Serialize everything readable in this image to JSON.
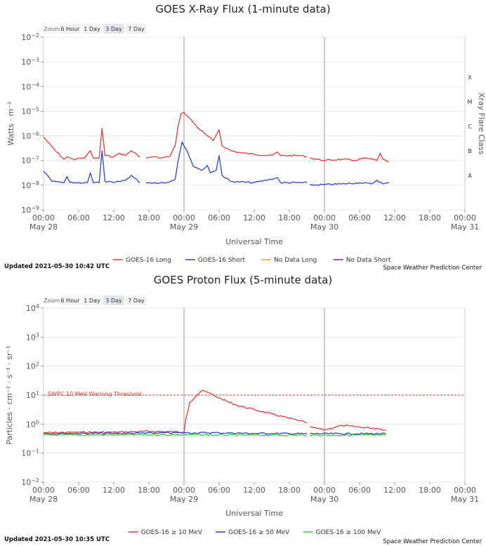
{
  "xray": {
    "zoom_label": "Zoom",
    "zoom": [
      "6 Hour",
      "1 Day",
      "3 Day",
      "7 Day"
    ],
    "zoom_selected": 2,
    "updated": "Updated 2021-05-30 10:42 UTC",
    "credit": "Space Weather Prediction Center",
    "flare_title": "Xray Flare Class",
    "flare_classes": [
      "X",
      "M",
      "C",
      "B",
      "A"
    ]
  },
  "proton": {
    "zoom_label": "Zoom",
    "zoom": [
      "6 Hour",
      "1 Day",
      "3 Day",
      "7 Day"
    ],
    "zoom_selected": 2,
    "updated": "Updated 2021-05-30 10:35 UTC",
    "credit": "Space Weather Prediction Center",
    "threshold_label": "SWPC 10 MeV Warning Threshold"
  },
  "chart_data": [
    {
      "type": "line",
      "title": "GOES X-Ray Flux (1-minute data)",
      "xlabel": "Universal Time",
      "ylabel": "Watts · m⁻²",
      "y_scale": "log",
      "ylim_exp": [
        -9,
        -2
      ],
      "y_ticks": [
        "10−2",
        "10−3",
        "10−4",
        "10−5",
        "10−6",
        "10−7",
        "10−8",
        "10−9"
      ],
      "xlim": [
        "2021-05-28 00:00",
        "2021-05-31 00:00"
      ],
      "x_ticks": [
        {
          "time": "00:00",
          "date": "May 28"
        },
        {
          "time": "06:00",
          "date": ""
        },
        {
          "time": "12:00",
          "date": ""
        },
        {
          "time": "18:00",
          "date": ""
        },
        {
          "time": "00:00",
          "date": "May 29"
        },
        {
          "time": "06:00",
          "date": ""
        },
        {
          "time": "12:00",
          "date": ""
        },
        {
          "time": "18:00",
          "date": ""
        },
        {
          "time": "00:00",
          "date": "May 30"
        },
        {
          "time": "06:00",
          "date": ""
        },
        {
          "time": "12:00",
          "date": ""
        },
        {
          "time": "18:00",
          "date": ""
        },
        {
          "time": "00:00",
          "date": "May 31"
        }
      ],
      "legend": [
        {
          "name": "GOES-16 Long",
          "color": "#e03a3a"
        },
        {
          "name": "GOES-16 Short",
          "color": "#2f3fd6"
        },
        {
          "name": "No Data Long",
          "color": "#f0a020"
        },
        {
          "name": "No Data Short",
          "color": "#6a1fd0"
        }
      ],
      "series": [
        {
          "name": "GOES-16 Long",
          "color": "#e03a3a",
          "segments": [
            [
              [
                "2021-05-28 00:00",
                -6.05
              ],
              [
                "2021-05-28 02:00",
                -6.6
              ],
              [
                "2021-05-28 03:30",
                -6.95
              ],
              [
                "2021-05-28 04:00",
                -6.85
              ],
              [
                "2021-05-28 05:00",
                -6.95
              ],
              [
                "2021-05-28 07:00",
                -6.9
              ],
              [
                "2021-05-28 08:00",
                -6.6
              ],
              [
                "2021-05-28 08:30",
                -6.9
              ],
              [
                "2021-05-28 09:30",
                -6.9
              ],
              [
                "2021-05-28 10:00",
                -5.7
              ],
              [
                "2021-05-28 10:30",
                -6.8
              ],
              [
                "2021-05-28 12:00",
                -6.85
              ],
              [
                "2021-05-28 13:00",
                -6.7
              ],
              [
                "2021-05-28 14:00",
                -6.8
              ],
              [
                "2021-05-28 15:00",
                -6.6
              ],
              [
                "2021-05-28 16:30",
                -6.85
              ]
            ],
            [
              [
                "2021-05-28 17:30",
                -6.9
              ],
              [
                "2021-05-28 19:00",
                -6.85
              ],
              [
                "2021-05-28 20:00",
                -6.9
              ],
              [
                "2021-05-28 21:30",
                -6.85
              ],
              [
                "2021-05-28 22:30",
                -6.4
              ],
              [
                "2021-05-28 23:00",
                -5.6
              ],
              [
                "2021-05-28 23:30",
                -5.1
              ],
              [
                "2021-05-29 00:00",
                -5.05
              ],
              [
                "2021-05-29 01:00",
                -5.3
              ],
              [
                "2021-05-29 02:30",
                -5.7
              ],
              [
                "2021-05-29 04:00",
                -6.0
              ],
              [
                "2021-05-29 05:00",
                -6.2
              ],
              [
                "2021-05-29 06:00",
                -5.75
              ],
              [
                "2021-05-29 06:30",
                -6.4
              ],
              [
                "2021-05-29 08:00",
                -6.6
              ],
              [
                "2021-05-29 10:00",
                -6.7
              ],
              [
                "2021-05-29 12:00",
                -6.75
              ],
              [
                "2021-05-29 15:00",
                -6.8
              ],
              [
                "2021-05-29 16:00",
                -6.65
              ],
              [
                "2021-05-29 16:30",
                -6.8
              ],
              [
                "2021-05-29 20:00",
                -6.8
              ],
              [
                "2021-05-29 21:00",
                -6.85
              ]
            ],
            [
              [
                "2021-05-29 21:30",
                -6.9
              ],
              [
                "2021-05-30 00:00",
                -7.0
              ],
              [
                "2021-05-30 03:00",
                -6.95
              ],
              [
                "2021-05-30 05:00",
                -7.0
              ],
              [
                "2021-05-30 07:00",
                -6.9
              ],
              [
                "2021-05-30 09:00",
                -7.0
              ],
              [
                "2021-05-30 09:30",
                -6.7
              ],
              [
                "2021-05-30 10:00",
                -6.95
              ],
              [
                "2021-05-30 11:00",
                -7.05
              ]
            ]
          ]
        },
        {
          "name": "GOES-16 Short",
          "color": "#2f3fd6",
          "segments": [
            [
              [
                "2021-05-28 00:00",
                -7.45
              ],
              [
                "2021-05-28 01:30",
                -7.85
              ],
              [
                "2021-05-28 03:30",
                -7.9
              ],
              [
                "2021-05-28 04:00",
                -7.65
              ],
              [
                "2021-05-28 04:30",
                -7.9
              ],
              [
                "2021-05-28 07:30",
                -7.9
              ],
              [
                "2021-05-28 08:00",
                -7.5
              ],
              [
                "2021-05-28 08:30",
                -7.9
              ],
              [
                "2021-05-28 09:30",
                -7.9
              ],
              [
                "2021-05-28 10:00",
                -6.6
              ],
              [
                "2021-05-28 10:30",
                -7.85
              ],
              [
                "2021-05-28 12:00",
                -7.9
              ],
              [
                "2021-05-28 14:00",
                -7.8
              ],
              [
                "2021-05-28 15:00",
                -7.6
              ],
              [
                "2021-05-28 16:30",
                -7.9
              ]
            ],
            [
              [
                "2021-05-28 17:30",
                -7.9
              ],
              [
                "2021-05-28 21:00",
                -7.9
              ],
              [
                "2021-05-28 22:30",
                -7.75
              ],
              [
                "2021-05-28 23:00",
                -7.0
              ],
              [
                "2021-05-28 23:40",
                -6.25
              ],
              [
                "2021-05-29 00:30",
                -6.6
              ],
              [
                "2021-05-29 01:30",
                -7.2
              ],
              [
                "2021-05-29 03:00",
                -7.4
              ],
              [
                "2021-05-29 04:00",
                -7.2
              ],
              [
                "2021-05-29 04:30",
                -7.5
              ],
              [
                "2021-05-29 05:30",
                -7.4
              ],
              [
                "2021-05-29 06:00",
                -6.8
              ],
              [
                "2021-05-29 06:30",
                -7.6
              ],
              [
                "2021-05-29 08:00",
                -7.85
              ],
              [
                "2021-05-29 12:00",
                -7.9
              ],
              [
                "2021-05-29 14:00",
                -7.8
              ],
              [
                "2021-05-29 16:00",
                -7.7
              ],
              [
                "2021-05-29 16:30",
                -7.9
              ],
              [
                "2021-05-29 21:00",
                -7.9
              ]
            ],
            [
              [
                "2021-05-29 21:30",
                -8.0
              ],
              [
                "2021-05-30 03:00",
                -7.95
              ],
              [
                "2021-05-30 06:00",
                -7.9
              ],
              [
                "2021-05-30 08:00",
                -7.95
              ],
              [
                "2021-05-30 09:00",
                -7.8
              ],
              [
                "2021-05-30 10:00",
                -7.95
              ],
              [
                "2021-05-30 11:00",
                -7.9
              ]
            ]
          ]
        }
      ]
    },
    {
      "type": "line",
      "title": "GOES Proton Flux (5-minute data)",
      "xlabel": "Universal Time",
      "ylabel": "Particles · cm⁻² · s⁻¹ · sr⁻¹",
      "y_scale": "log",
      "ylim_exp": [
        -2,
        4
      ],
      "y_ticks": [
        "104",
        "103",
        "102",
        "101",
        "100",
        "10−1",
        "10−2"
      ],
      "xlim": [
        "2021-05-28 00:00",
        "2021-05-31 00:00"
      ],
      "x_ticks": [
        {
          "time": "00:00",
          "date": "May 28"
        },
        {
          "time": "06:00",
          "date": ""
        },
        {
          "time": "12:00",
          "date": ""
        },
        {
          "time": "18:00",
          "date": ""
        },
        {
          "time": "00:00",
          "date": "May 29"
        },
        {
          "time": "06:00",
          "date": ""
        },
        {
          "time": "12:00",
          "date": ""
        },
        {
          "time": "18:00",
          "date": ""
        },
        {
          "time": "00:00",
          "date": "May 30"
        },
        {
          "time": "06:00",
          "date": ""
        },
        {
          "time": "12:00",
          "date": ""
        },
        {
          "time": "18:00",
          "date": ""
        },
        {
          "time": "00:00",
          "date": "May 31"
        }
      ],
      "threshold": {
        "value_exp": 1,
        "color": "#e03a3a"
      },
      "legend": [
        {
          "name": "GOES-16 ≥ 10 MeV",
          "color": "#e03a3a"
        },
        {
          "name": "GOES-16 ≥ 50 MeV",
          "color": "#2f3fd6"
        },
        {
          "name": "GOES-16 ≥ 100 MeV",
          "color": "#2fd02f"
        }
      ],
      "series": [
        {
          "name": "GOES-16 ≥ 10 MeV",
          "color": "#e03a3a",
          "segments": [
            [
              [
                "2021-05-28 00:00",
                -0.3
              ],
              [
                "2021-05-28 06:00",
                -0.28
              ],
              [
                "2021-05-28 12:00",
                -0.28
              ],
              [
                "2021-05-28 18:00",
                -0.25
              ],
              [
                "2021-05-29 00:00",
                -0.27
              ],
              [
                "2021-05-29 00:20",
                0.2
              ],
              [
                "2021-05-29 01:00",
                0.75
              ],
              [
                "2021-05-29 02:00",
                0.95
              ],
              [
                "2021-05-29 03:00",
                1.15
              ],
              [
                "2021-05-29 04:00",
                1.1
              ],
              [
                "2021-05-29 06:00",
                0.9
              ],
              [
                "2021-05-29 09:00",
                0.65
              ],
              [
                "2021-05-29 12:00",
                0.5
              ],
              [
                "2021-05-29 15:00",
                0.35
              ],
              [
                "2021-05-29 18:00",
                0.2
              ],
              [
                "2021-05-29 21:00",
                0.05
              ]
            ],
            [
              [
                "2021-05-29 21:30",
                -0.1
              ],
              [
                "2021-05-30 00:00",
                -0.2
              ],
              [
                "2021-05-30 03:00",
                -0.05
              ],
              [
                "2021-05-30 06:00",
                -0.1
              ],
              [
                "2021-05-30 09:00",
                -0.15
              ],
              [
                "2021-05-30 10:30",
                -0.2
              ]
            ]
          ]
        },
        {
          "name": "GOES-16 ≥ 50 MeV",
          "color": "#2f3fd6",
          "segments": [
            [
              [
                "2021-05-28 00:00",
                -0.32
              ],
              [
                "2021-05-28 12:00",
                -0.32
              ],
              [
                "2021-05-29 00:00",
                -0.3
              ],
              [
                "2021-05-29 06:00",
                -0.3
              ],
              [
                "2021-05-29 12:00",
                -0.32
              ],
              [
                "2021-05-29 21:00",
                -0.33
              ]
            ],
            [
              [
                "2021-05-29 21:30",
                -0.33
              ],
              [
                "2021-05-30 10:30",
                -0.33
              ]
            ]
          ]
        },
        {
          "name": "GOES-16 ≥ 100 MeV",
          "color": "#2fd02f",
          "segments": [
            [
              [
                "2021-05-28 00:00",
                -0.38
              ],
              [
                "2021-05-28 12:00",
                -0.37
              ],
              [
                "2021-05-29 00:00",
                -0.37
              ],
              [
                "2021-05-29 12:00",
                -0.38
              ],
              [
                "2021-05-29 21:00",
                -0.38
              ]
            ],
            [
              [
                "2021-05-29 21:30",
                -0.38
              ],
              [
                "2021-05-30 10:30",
                -0.38
              ]
            ]
          ]
        }
      ]
    }
  ]
}
